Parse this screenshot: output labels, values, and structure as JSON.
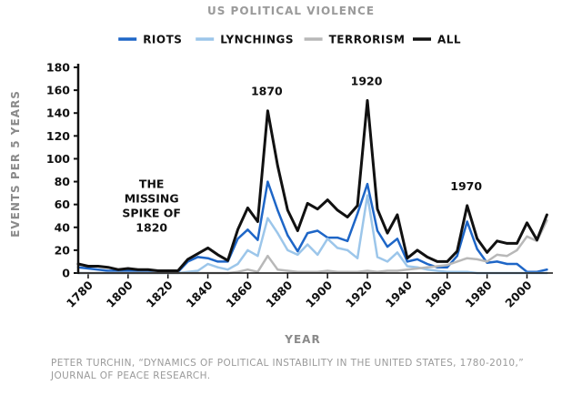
{
  "chart_data": {
    "type": "line",
    "title": "US POLITICAL VIOLENCE",
    "xlabel": "YEAR",
    "ylabel": "EVENTS PER 5 YEARS",
    "xlim": [
      1775,
      2013
    ],
    "ylim": [
      0,
      180
    ],
    "x_ticks": [
      1780,
      1800,
      1820,
      1840,
      1860,
      1880,
      1900,
      1920,
      1940,
      1960,
      1980,
      2000
    ],
    "y_ticks": [
      0,
      20,
      40,
      60,
      80,
      100,
      120,
      140,
      160,
      180
    ],
    "legend_position": "top-center",
    "x": [
      1775,
      1780,
      1785,
      1790,
      1795,
      1800,
      1805,
      1810,
      1815,
      1820,
      1825,
      1830,
      1835,
      1840,
      1845,
      1850,
      1855,
      1860,
      1865,
      1870,
      1875,
      1880,
      1885,
      1890,
      1895,
      1900,
      1905,
      1910,
      1915,
      1920,
      1925,
      1930,
      1935,
      1940,
      1945,
      1950,
      1955,
      1960,
      1965,
      1970,
      1975,
      1980,
      1985,
      1990,
      1995,
      2000,
      2005,
      2010
    ],
    "series": [
      {
        "name": "RIOTS",
        "color": "#1e66c7",
        "stroke_width": 2.5,
        "values": [
          5,
          4,
          3,
          2,
          2,
          2,
          2,
          2,
          1,
          1,
          1,
          10,
          14,
          13,
          10,
          10,
          30,
          38,
          29,
          80,
          55,
          33,
          19,
          35,
          37,
          31,
          31,
          28,
          52,
          78,
          37,
          23,
          30,
          10,
          12,
          8,
          5,
          5,
          15,
          45,
          21,
          9,
          10,
          8,
          8,
          1,
          1,
          3
        ]
      },
      {
        "name": "LYNCHINGS",
        "color": "#9cc6ea",
        "stroke_width": 2.5,
        "values": [
          0,
          0,
          0,
          0,
          0,
          0,
          0,
          0,
          0,
          0,
          0,
          1,
          2,
          8,
          5,
          3,
          8,
          20,
          15,
          48,
          35,
          20,
          16,
          25,
          16,
          30,
          22,
          20,
          13,
          68,
          14,
          10,
          18,
          6,
          5,
          3,
          2,
          1,
          1,
          1,
          0,
          0,
          0,
          0,
          0,
          0,
          0,
          0
        ]
      },
      {
        "name": "TERRORISM",
        "color": "#b8b8b8",
        "stroke_width": 2.5,
        "values": [
          0,
          0,
          0,
          0,
          0,
          0,
          0,
          0,
          0,
          0,
          0,
          0,
          0,
          0,
          0,
          0,
          1,
          3,
          1,
          15,
          3,
          2,
          1,
          1,
          1,
          2,
          1,
          1,
          1,
          2,
          1,
          2,
          2,
          3,
          4,
          5,
          6,
          7,
          10,
          13,
          12,
          10,
          16,
          15,
          20,
          32,
          28,
          46
        ]
      },
      {
        "name": "ALL",
        "color": "#111111",
        "stroke_width": 3,
        "values": [
          8,
          6,
          6,
          5,
          3,
          4,
          3,
          3,
          2,
          2,
          2,
          12,
          17,
          22,
          16,
          11,
          38,
          57,
          45,
          142,
          94,
          55,
          37,
          61,
          56,
          64,
          55,
          49,
          59,
          151,
          56,
          35,
          51,
          13,
          20,
          14,
          10,
          10,
          19,
          59,
          30,
          18,
          28,
          26,
          26,
          44,
          29,
          51
        ]
      }
    ],
    "annotations": [
      {
        "text": "1870",
        "x": 1870,
        "y": 142
      },
      {
        "text": "1920",
        "x": 1920,
        "y": 151
      },
      {
        "text": "1970",
        "x": 1970,
        "y": 59
      },
      {
        "lines": [
          "THE",
          "MISSING",
          "SPIKE OF",
          "1820"
        ],
        "x": 1820,
        "y": 60
      }
    ],
    "source": [
      "PETER TURCHIN, “DYNAMICS OF POLITICAL INSTABILITY IN THE UNITED STATES, 1780-2010,”",
      "JOURNAL OF PEACE RESEARCH."
    ]
  }
}
